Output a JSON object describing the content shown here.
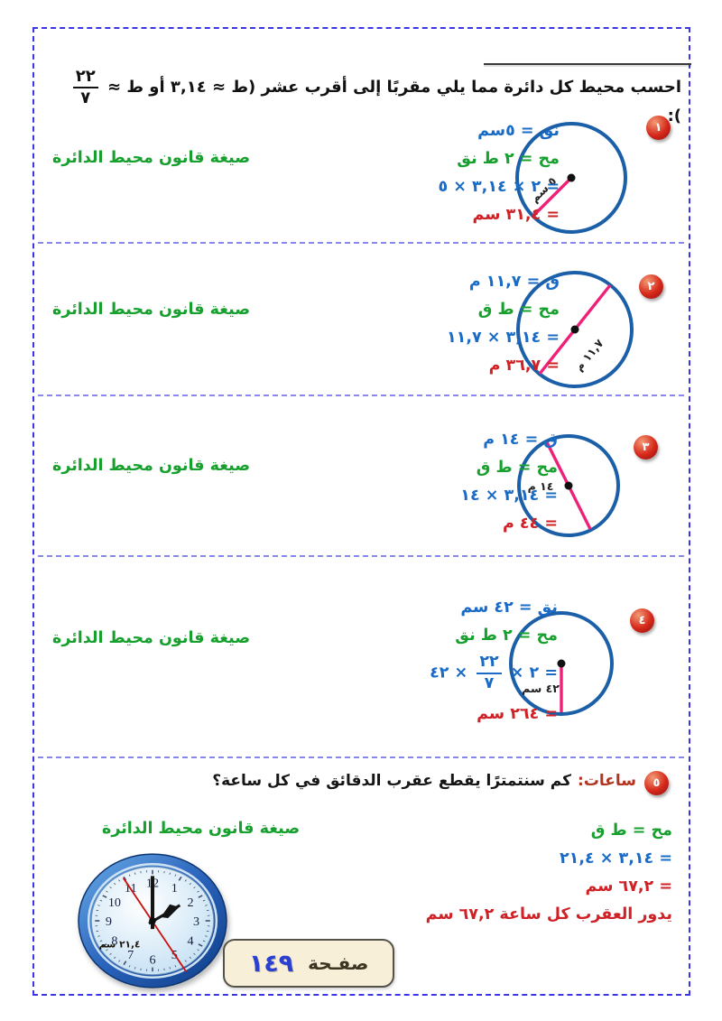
{
  "colors": {
    "blue": "#1a6bc6",
    "green": "#17a02e",
    "red": "#cf2126",
    "pink": "#ee2077",
    "circle_blue": "#1b5fa8",
    "badge_red": "#d6281a",
    "border_blue": "#3b35e8",
    "separator_blue": "#8888e8",
    "footer_number_blue": "#2b3fd0",
    "title_red": "#b23320"
  },
  "header": {
    "text": "احسب محيط كل دائرة مما يلي مقربًا إلى أقرب عشر (ط ≈ ٣,١٤ أو ط ≈",
    "frac_num": "٢٢",
    "frac_den": "٧",
    "text_end": "):"
  },
  "formula_note": "صيغة قانون محيط الدائرة",
  "problems": [
    {
      "number": "١",
      "given": "نق = ٥سم",
      "formula": "مح = ٢ ط نق",
      "substitution": "= ٢ × ٣,١٤ × ٥",
      "result": "= ٣١,٤ سم",
      "circle_label": "٥ سم"
    },
    {
      "number": "٢",
      "given": "ق = ١١,٧ م",
      "formula": "مح = ط ق",
      "substitution": "= ٣,١٤ × ١١,٧",
      "result": "= ٣٦,٧ م",
      "circle_label": "١١,٧ م"
    },
    {
      "number": "٣",
      "given": "ق = ١٤ م",
      "formula": "مح = ط ق",
      "substitution": "= ٣,١٤ × ١٤",
      "result": "= ٤٤ م",
      "circle_label": "١٤ م"
    },
    {
      "number": "٤",
      "given": "نق = ٤٢ سم",
      "formula": "مح = ٢ ط نق",
      "sub_before": "= ٢ ×",
      "sub_num": "٢٢",
      "sub_den": "٧",
      "sub_after": "× ٤٢",
      "result": "= ٢٦٤ سم",
      "circle_label": "٤٢ سم"
    }
  ],
  "problem5": {
    "number": "٥",
    "title": "ساعات:",
    "question": "كم سنتمترًا يقطع عقرب الدقائق في كل ساعة؟",
    "formula": "مح = ط ق",
    "substitution": "= ٣,١٤ × ٢١,٤",
    "result": "= ٦٧,٢ سم",
    "conclusion": "يدور العقرب كل ساعة ٦٧,٢ سم",
    "clock_label": "٢١,٤ سم",
    "clock_numbers": [
      "12",
      "1",
      "2",
      "3",
      "4",
      "5",
      "6",
      "7",
      "8",
      "9",
      "10",
      "11"
    ]
  },
  "footer": {
    "page_label": "صفـحة",
    "page_number": "١٤٩"
  }
}
